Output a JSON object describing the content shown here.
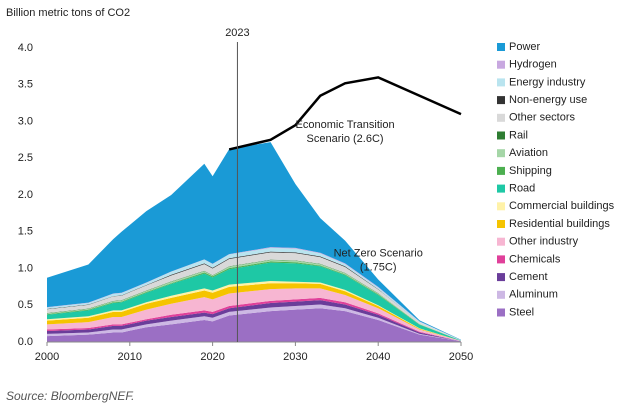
{
  "chart_data": {
    "type": "stacked_area",
    "y_label": "Billion metric tons of CO2",
    "source": "Source: BloombergNEF.",
    "x": [
      2000,
      2005,
      2008,
      2009,
      2012,
      2015,
      2019,
      2020,
      2022,
      2027,
      2030,
      2033,
      2036,
      2040,
      2045,
      2050
    ],
    "xlim": [
      2000,
      2050
    ],
    "xticks": [
      2000,
      2010,
      2020,
      2030,
      2040,
      2050
    ],
    "ylim": [
      0,
      4
    ],
    "yticks": [
      {
        "value": 0,
        "label": "0.0"
      },
      {
        "value": 0.5,
        "label": "0.5"
      },
      {
        "value": 1,
        "label": "1.0"
      },
      {
        "value": 1.5,
        "label": "1.5"
      },
      {
        "value": 2,
        "label": "2.0"
      },
      {
        "value": 2.5,
        "label": "2.5"
      },
      {
        "value": 3,
        "label": "3.0"
      },
      {
        "value": 3.5,
        "label": "3.5"
      },
      {
        "value": 4,
        "label": "4.0"
      }
    ],
    "vline": {
      "x": 2023,
      "label": "2023"
    },
    "series": [
      {
        "name": "Steel",
        "color": "#9b6fc4",
        "values": [
          0.08,
          0.1,
          0.13,
          0.13,
          0.2,
          0.24,
          0.3,
          0.28,
          0.36,
          0.42,
          0.44,
          0.46,
          0.42,
          0.3,
          0.1,
          0.01
        ]
      },
      {
        "name": "Aluminum",
        "color": "#cdb8e4",
        "values": [
          0.03,
          0.03,
          0.04,
          0.04,
          0.04,
          0.05,
          0.05,
          0.05,
          0.05,
          0.05,
          0.05,
          0.05,
          0.04,
          0.03,
          0.01,
          0
        ]
      },
      {
        "name": "Cement",
        "color": "#6a3d9a",
        "values": [
          0.04,
          0.04,
          0.05,
          0.05,
          0.05,
          0.05,
          0.05,
          0.05,
          0.05,
          0.06,
          0.06,
          0.06,
          0.05,
          0.04,
          0.02,
          0
        ]
      },
      {
        "name": "Chemicals",
        "color": "#e0409a",
        "values": [
          0.02,
          0.02,
          0.02,
          0.02,
          0.02,
          0.03,
          0.03,
          0.03,
          0.03,
          0.03,
          0.03,
          0.03,
          0.03,
          0.02,
          0.01,
          0
        ]
      },
      {
        "name": "Other industry",
        "color": "#f7b6d2",
        "values": [
          0.07,
          0.08,
          0.1,
          0.1,
          0.13,
          0.15,
          0.18,
          0.17,
          0.17,
          0.16,
          0.15,
          0.13,
          0.1,
          0.07,
          0.03,
          0.005
        ]
      },
      {
        "name": "Residential buildings",
        "color": "#f5c400",
        "values": [
          0.05,
          0.06,
          0.07,
          0.07,
          0.08,
          0.08,
          0.09,
          0.09,
          0.09,
          0.08,
          0.07,
          0.06,
          0.05,
          0.03,
          0.01,
          0
        ]
      },
      {
        "name": "Commercial buildings",
        "color": "#fff2a8",
        "values": [
          0.02,
          0.02,
          0.02,
          0.02,
          0.02,
          0.03,
          0.03,
          0.03,
          0.03,
          0.03,
          0.02,
          0.02,
          0.02,
          0.01,
          0.005,
          0
        ]
      },
      {
        "name": "Road",
        "color": "#1ec8a5",
        "values": [
          0.06,
          0.08,
          0.1,
          0.11,
          0.13,
          0.16,
          0.2,
          0.18,
          0.21,
          0.25,
          0.25,
          0.22,
          0.2,
          0.14,
          0.05,
          0.005
        ]
      },
      {
        "name": "Shipping",
        "color": "#4caf50",
        "values": [
          0.01,
          0.01,
          0.01,
          0.01,
          0.01,
          0.01,
          0.015,
          0.015,
          0.015,
          0.015,
          0.015,
          0.01,
          0.01,
          0.01,
          0.005,
          0
        ]
      },
      {
        "name": "Aviation",
        "color": "#a5d6a7",
        "values": [
          0.01,
          0.01,
          0.015,
          0.015,
          0.015,
          0.02,
          0.02,
          0.01,
          0.02,
          0.02,
          0.02,
          0.02,
          0.015,
          0.01,
          0.005,
          0
        ]
      },
      {
        "name": "Rail",
        "color": "#2e7d32",
        "values": [
          0.005,
          0.005,
          0.005,
          0.005,
          0.005,
          0.005,
          0.005,
          0.005,
          0.005,
          0.005,
          0.005,
          0.005,
          0.005,
          0.005,
          0,
          0
        ]
      },
      {
        "name": "Other sectors",
        "color": "#d9d9d9",
        "values": [
          0.05,
          0.05,
          0.06,
          0.06,
          0.07,
          0.08,
          0.09,
          0.09,
          0.1,
          0.1,
          0.1,
          0.09,
          0.08,
          0.05,
          0.02,
          0.005
        ]
      },
      {
        "name": "Non-energy use",
        "color": "#333333",
        "values": [
          0.005,
          0.005,
          0.005,
          0.005,
          0.005,
          0.01,
          0.01,
          0.01,
          0.01,
          0.01,
          0.01,
          0.01,
          0.01,
          0.005,
          0,
          0
        ]
      },
      {
        "name": "Energy industry",
        "color": "#b9e4ef",
        "values": [
          0.02,
          0.02,
          0.03,
          0.03,
          0.03,
          0.04,
          0.05,
          0.05,
          0.05,
          0.05,
          0.05,
          0.04,
          0.03,
          0.02,
          0.01,
          0
        ]
      },
      {
        "name": "Hydrogen",
        "color": "#c8a8e0",
        "values": [
          0.005,
          0.005,
          0.005,
          0.005,
          0.005,
          0.005,
          0.005,
          0.005,
          0.005,
          0.01,
          0.01,
          0.01,
          0.01,
          0.01,
          0.005,
          0
        ]
      },
      {
        "name": "Power",
        "color": "#1a9ad6",
        "values": [
          0.4,
          0.52,
          0.74,
          0.83,
          0.97,
          1.04,
          1.3,
          1.19,
          1.43,
          1.43,
          0.87,
          0.47,
          0.31,
          0.1,
          0.015,
          0.005
        ]
      }
    ],
    "transition_line": {
      "color": "#000000",
      "values": [
        null,
        null,
        null,
        null,
        null,
        null,
        null,
        null,
        2.62,
        2.75,
        2.95,
        3.35,
        3.52,
        3.6,
        3.35,
        3.1
      ]
    },
    "annotations": [
      {
        "x": 2036,
        "y": 2.95,
        "lines": [
          "Economic Transition",
          "Scenario (2.6C)"
        ]
      },
      {
        "x": 2040,
        "y": 1.2,
        "lines": [
          "Net Zero Scenario",
          "(1.75C)"
        ]
      }
    ]
  }
}
